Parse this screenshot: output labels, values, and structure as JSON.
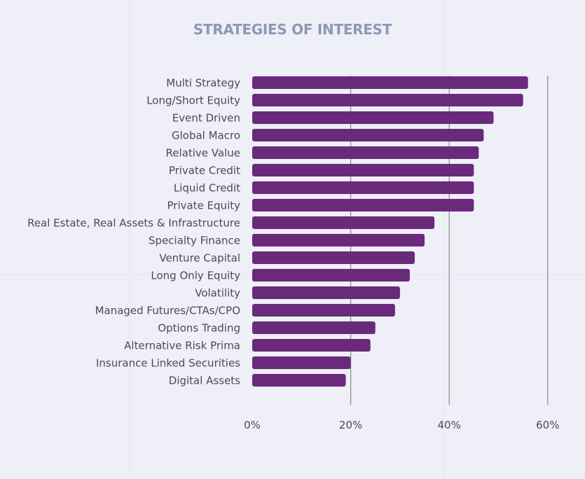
{
  "chart_data": {
    "type": "bar",
    "orientation": "horizontal",
    "title": "STRATEGIES OF INTEREST",
    "categories": [
      "Multi Strategy",
      "Long/Short Equity",
      "Event Driven",
      "Global Macro",
      "Relative Value",
      "Private Credit",
      "Liquid Credit",
      "Private Equity",
      "Real Estate, Real Assets & Infrastructure",
      "Specialty Finance",
      "Venture Capital",
      "Long Only Equity",
      "Volatility",
      "Managed Futures/CTAs/CPO",
      "Options Trading",
      "Alternative Risk Prima",
      "Insurance Linked Securities",
      "Digital Assets"
    ],
    "values": [
      56,
      55,
      49,
      47,
      46,
      45,
      45,
      45,
      37,
      35,
      33,
      32,
      30,
      29,
      25,
      24,
      20,
      19
    ],
    "xlim": [
      0,
      60
    ],
    "xticks": [
      0,
      20,
      40,
      60
    ],
    "xtick_labels": [
      "0%",
      "20%",
      "40%",
      "60%"
    ],
    "grid": true,
    "colors": {
      "bar": "#6a2a7c",
      "background": "#eeeff7",
      "title": "#8d98b4",
      "label": "#4a4a5a",
      "gridline": "#8a8a90"
    }
  }
}
